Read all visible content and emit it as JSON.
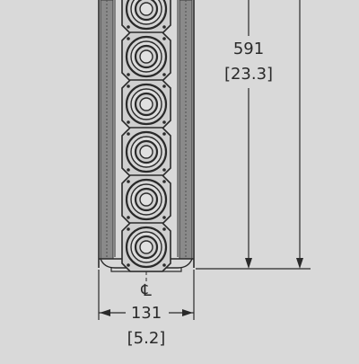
{
  "drawing": {
    "driver_count_visible": 6,
    "height_dimension": {
      "value_mm": "591",
      "value_in": "[23.3]"
    },
    "width_dimension": {
      "value_mm": "131",
      "value_in": "[5.2]"
    },
    "centerline_symbol": "℄"
  },
  "colors": {
    "background": "#d9d9d9",
    "line": "#2a2a2a",
    "cabinet_edge": "#505050"
  }
}
